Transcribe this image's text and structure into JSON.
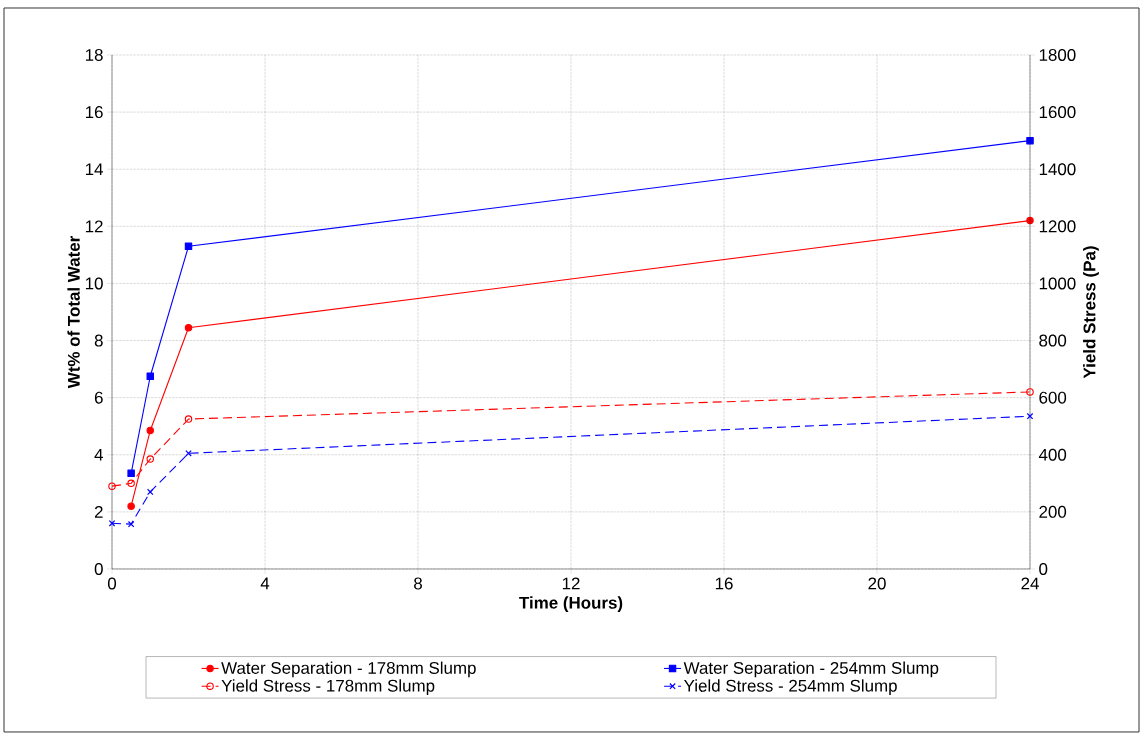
{
  "chart_data": {
    "type": "line",
    "xlabel": "Time (Hours)",
    "ylabel": "Wt% of Total Water",
    "y2label": "Yield Stress (Pa)",
    "xlim": [
      0,
      24
    ],
    "xticks": [
      0,
      4,
      8,
      12,
      16,
      20,
      24
    ],
    "ylim": [
      0,
      18
    ],
    "yticks": [
      0,
      2,
      4,
      6,
      8,
      10,
      12,
      14,
      16,
      18
    ],
    "y2lim": [
      0,
      1800
    ],
    "y2ticks": [
      0,
      200,
      400,
      600,
      800,
      1000,
      1200,
      1400,
      1600,
      1800
    ],
    "grid": true,
    "legend": "bottom",
    "series": [
      {
        "name": "Water Separation - 178mm Slump",
        "color": "#ff0000",
        "marker": "circle",
        "line_style": "solid",
        "x": [
          0.5,
          1,
          2,
          24
        ],
        "values": [
          2.2,
          4.85,
          8.45,
          12.2
        ]
      },
      {
        "name": "Water Separation - 254mm Slump",
        "color": "#0000ff",
        "marker": "square",
        "line_style": "solid",
        "x": [
          0.5,
          1,
          2,
          24
        ],
        "values": [
          3.35,
          6.75,
          11.3,
          15.0
        ]
      },
      {
        "name": "Yield Stress - 178mm Slump",
        "color": "#ff0000",
        "marker": "circle",
        "line_style": "dashed",
        "axis": "y2",
        "x": [
          0,
          0.5,
          1,
          2,
          24
        ],
        "values": [
          290,
          300,
          385,
          525,
          620
        ]
      },
      {
        "name": "Yield Stress - 254mm Slump",
        "color": "#0000ff",
        "marker": "cross",
        "line_style": "dashed",
        "axis": "y2",
        "x": [
          0,
          0.5,
          1,
          2,
          24
        ],
        "values": [
          160,
          157,
          270,
          405,
          535
        ]
      }
    ]
  }
}
